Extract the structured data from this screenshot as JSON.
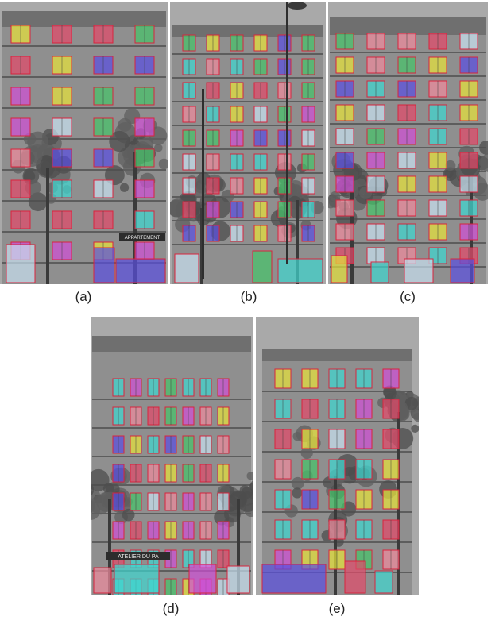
{
  "figure": {
    "panels": [
      {
        "id": "a",
        "caption": "(a)"
      },
      {
        "id": "b",
        "caption": "(b)"
      },
      {
        "id": "c",
        "caption": "(c)"
      },
      {
        "id": "d",
        "caption": "(d)"
      },
      {
        "id": "e",
        "caption": "(e)"
      }
    ],
    "signs": {
      "a_shop": "APPARTEMENT",
      "d_shop": "ATELIER DU PA"
    },
    "overlay_palette": [
      "#e24a6a",
      "#3fd7d0",
      "#e6e23a",
      "#d04fd6",
      "#5a4fe0",
      "#46c46a",
      "#ef8a9c",
      "#c8e0f0"
    ]
  }
}
